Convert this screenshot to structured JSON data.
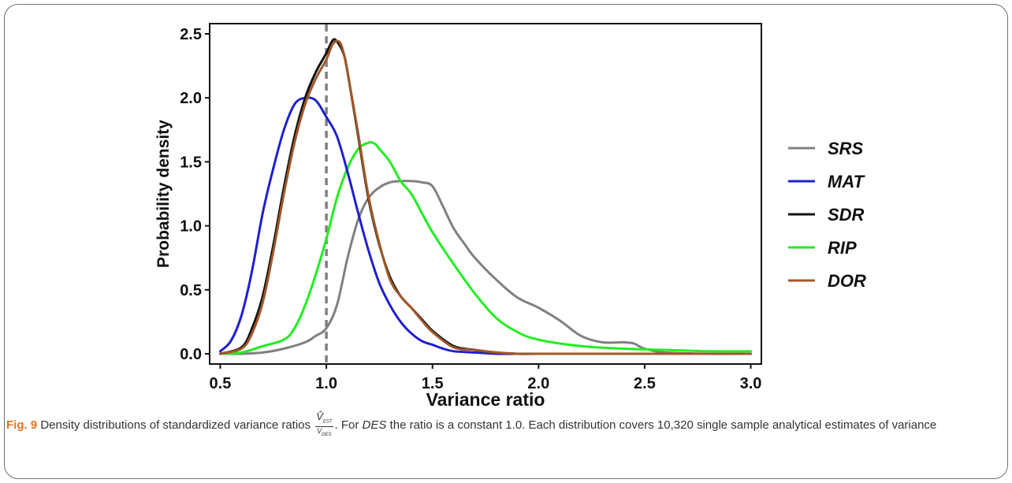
{
  "chart_data": {
    "type": "line",
    "xlabel": "Variance ratio",
    "ylabel": "Probability density",
    "xlim": [
      0.45,
      3.05
    ],
    "ylim": [
      -0.08,
      2.58
    ],
    "x_ticks": [
      "0.5",
      "1.0",
      "1.5",
      "2.0",
      "2.5",
      "3.0"
    ],
    "y_ticks": [
      "0.0",
      "0.5",
      "1.0",
      "1.5",
      "2.0",
      "2.5"
    ],
    "reference_line": {
      "x": 1.0,
      "style": "dashed",
      "color": "#808080"
    },
    "legend_position": "right",
    "grid": false,
    "series": [
      {
        "name": "SRS",
        "color": "#808080",
        "x": [
          0.5,
          0.6,
          0.7,
          0.8,
          0.9,
          0.95,
          1.0,
          1.05,
          1.1,
          1.15,
          1.2,
          1.25,
          1.3,
          1.35,
          1.4,
          1.45,
          1.5,
          1.55,
          1.6,
          1.65,
          1.7,
          1.8,
          1.9,
          2.0,
          2.1,
          2.2,
          2.3,
          2.4,
          2.45,
          2.5,
          2.6,
          2.8,
          3.0
        ],
        "y": [
          0.0,
          0.0,
          0.01,
          0.04,
          0.09,
          0.14,
          0.2,
          0.38,
          0.75,
          1.05,
          1.22,
          1.3,
          1.34,
          1.35,
          1.35,
          1.34,
          1.31,
          1.15,
          0.98,
          0.86,
          0.75,
          0.58,
          0.44,
          0.36,
          0.26,
          0.14,
          0.09,
          0.09,
          0.08,
          0.04,
          0.01,
          0.0,
          0.0
        ]
      },
      {
        "name": "MAT",
        "color": "#1f1fd0",
        "x": [
          0.5,
          0.55,
          0.6,
          0.65,
          0.7,
          0.75,
          0.8,
          0.85,
          0.9,
          0.95,
          1.0,
          1.05,
          1.1,
          1.15,
          1.2,
          1.25,
          1.3,
          1.35,
          1.4,
          1.45,
          1.5,
          1.55,
          1.6,
          1.7,
          1.8,
          1.9,
          2.0,
          2.5,
          3.0
        ],
        "y": [
          0.02,
          0.1,
          0.3,
          0.65,
          1.1,
          1.45,
          1.75,
          1.95,
          2.0,
          1.98,
          1.85,
          1.7,
          1.42,
          1.1,
          0.8,
          0.55,
          0.38,
          0.25,
          0.16,
          0.1,
          0.07,
          0.04,
          0.02,
          0.01,
          0.0,
          0.0,
          0.0,
          0.0,
          0.0
        ]
      },
      {
        "name": "SDR",
        "color": "#111111",
        "x": [
          0.5,
          0.6,
          0.65,
          0.7,
          0.75,
          0.8,
          0.85,
          0.9,
          0.95,
          1.0,
          1.03,
          1.05,
          1.08,
          1.1,
          1.15,
          1.2,
          1.25,
          1.3,
          1.35,
          1.4,
          1.45,
          1.5,
          1.6,
          1.7,
          1.8,
          1.9,
          2.0,
          2.5,
          3.0
        ],
        "y": [
          0.0,
          0.05,
          0.2,
          0.45,
          0.85,
          1.3,
          1.7,
          2.0,
          2.2,
          2.35,
          2.45,
          2.44,
          2.35,
          2.2,
          1.7,
          1.2,
          0.85,
          0.6,
          0.45,
          0.36,
          0.27,
          0.18,
          0.06,
          0.03,
          0.01,
          0.0,
          0.0,
          0.0,
          0.0
        ]
      },
      {
        "name": "RIP",
        "color": "#22ee22",
        "x": [
          0.5,
          0.6,
          0.7,
          0.8,
          0.85,
          0.9,
          0.95,
          1.0,
          1.05,
          1.1,
          1.15,
          1.2,
          1.23,
          1.25,
          1.3,
          1.35,
          1.4,
          1.45,
          1.5,
          1.6,
          1.7,
          1.8,
          1.9,
          2.0,
          2.2,
          2.4,
          2.6,
          2.8,
          3.0
        ],
        "y": [
          0.0,
          0.01,
          0.06,
          0.11,
          0.2,
          0.38,
          0.62,
          0.9,
          1.22,
          1.45,
          1.6,
          1.65,
          1.64,
          1.6,
          1.5,
          1.35,
          1.25,
          1.1,
          0.95,
          0.7,
          0.47,
          0.28,
          0.17,
          0.11,
          0.06,
          0.04,
          0.03,
          0.02,
          0.02
        ]
      },
      {
        "name": "DOR",
        "color": "#a0582a",
        "x": [
          0.5,
          0.6,
          0.65,
          0.7,
          0.75,
          0.8,
          0.85,
          0.9,
          0.95,
          1.0,
          1.03,
          1.06,
          1.08,
          1.1,
          1.15,
          1.2,
          1.25,
          1.3,
          1.35,
          1.4,
          1.45,
          1.5,
          1.6,
          1.7,
          1.8,
          1.9,
          2.0,
          2.5,
          3.0
        ],
        "y": [
          0.0,
          0.04,
          0.16,
          0.4,
          0.8,
          1.25,
          1.65,
          1.95,
          2.15,
          2.3,
          2.42,
          2.44,
          2.36,
          2.2,
          1.72,
          1.22,
          0.86,
          0.58,
          0.45,
          0.36,
          0.26,
          0.17,
          0.05,
          0.03,
          0.01,
          0.0,
          0.0,
          0.0,
          0.0
        ]
      }
    ]
  },
  "caption": {
    "fig_label": "Fig. 9",
    "text_before": " Density distributions of standardized variance ratios ",
    "fraction_numerator": "V̂",
    "fraction_numerator_sub": "EST",
    "fraction_denominator": "V",
    "fraction_denominator_sub": "DES",
    "text_middle_1": ". For ",
    "des_italic": "DES",
    "text_after": " the ratio is a constant 1.0. Each distribution covers 10,320 single sample analytical estimates of variance"
  }
}
